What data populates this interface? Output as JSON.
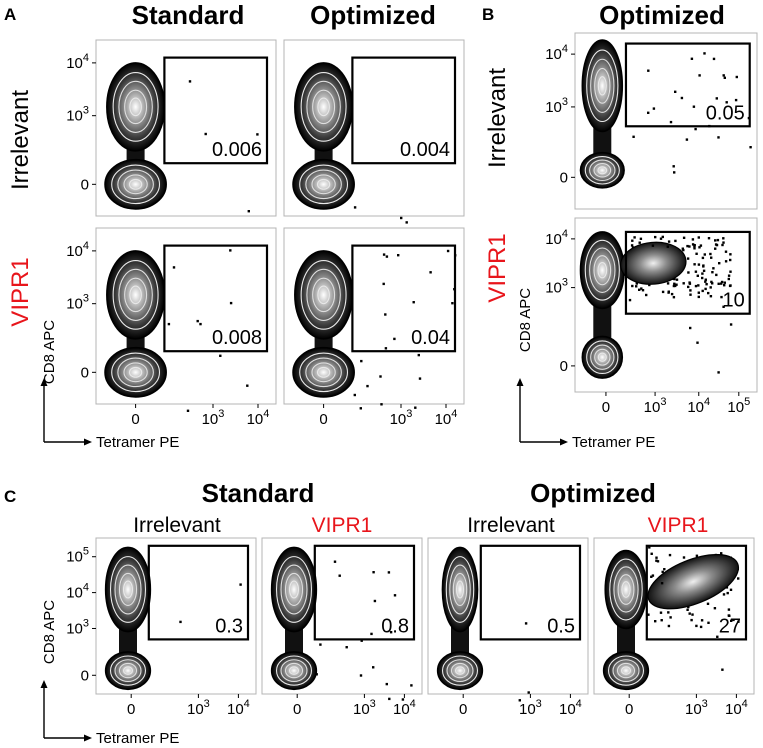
{
  "figure": {
    "panel_letters": [
      "A",
      "B",
      "C"
    ],
    "headers": {
      "a_standard": "Standard",
      "a_optimized": "Optimized",
      "b_optimized": "Optimized",
      "c_standard": "Standard",
      "c_optimized": "Optimized"
    },
    "row_labels": {
      "irrelevant": "Irrelevant",
      "vipr1": "VIPR1"
    },
    "axis_labels": {
      "y": "CD8 APC",
      "x": "Tetramer PE"
    },
    "tick_labels": {
      "zero": "0",
      "base": "10",
      "exp3": "3",
      "exp4": "4",
      "exp5": "5"
    }
  },
  "colors": {
    "vipr1_label": "#e8151b",
    "ink": "#000000",
    "frame": "#b4b4b4"
  },
  "chart_data": [
    {
      "type": "contour",
      "panel": "A",
      "row": "Irrelevant",
      "column": "Standard",
      "xlabel": "Tetramer PE",
      "ylabel": "CD8 APC",
      "gate_value": "0.006"
    },
    {
      "type": "contour",
      "panel": "A",
      "row": "Irrelevant",
      "column": "Optimized",
      "xlabel": "Tetramer PE",
      "ylabel": "CD8 APC",
      "gate_value": "0.004"
    },
    {
      "type": "contour",
      "panel": "A",
      "row": "VIPR1",
      "column": "Standard",
      "xlabel": "Tetramer PE",
      "ylabel": "CD8 APC",
      "gate_value": "0.008"
    },
    {
      "type": "contour",
      "panel": "A",
      "row": "VIPR1",
      "column": "Optimized",
      "xlabel": "Tetramer PE",
      "ylabel": "CD8 APC",
      "gate_value": "0.04"
    },
    {
      "type": "contour",
      "panel": "B",
      "row": "Irrelevant",
      "column": "Optimized",
      "xlabel": "Tetramer PE",
      "ylabel": "CD8 APC",
      "gate_value": "0.05"
    },
    {
      "type": "contour",
      "panel": "B",
      "row": "VIPR1",
      "column": "Optimized",
      "xlabel": "Tetramer PE",
      "ylabel": "CD8 APC",
      "gate_value": "10"
    },
    {
      "type": "contour",
      "panel": "C",
      "row": "Irrelevant",
      "column": "Standard",
      "xlabel": "Tetramer PE",
      "ylabel": "CD8 APC",
      "gate_value": "0.3"
    },
    {
      "type": "contour",
      "panel": "C",
      "row": "VIPR1",
      "column": "Standard",
      "xlabel": "Tetramer PE",
      "ylabel": "CD8 APC",
      "gate_value": "0.8"
    },
    {
      "type": "contour",
      "panel": "C",
      "row": "Irrelevant",
      "column": "Optimized",
      "xlabel": "Tetramer PE",
      "ylabel": "CD8 APC",
      "gate_value": "0.5"
    },
    {
      "type": "contour",
      "panel": "C",
      "row": "VIPR1",
      "column": "Optimized",
      "xlabel": "Tetramer PE",
      "ylabel": "CD8 APC",
      "gate_value": "27"
    }
  ]
}
